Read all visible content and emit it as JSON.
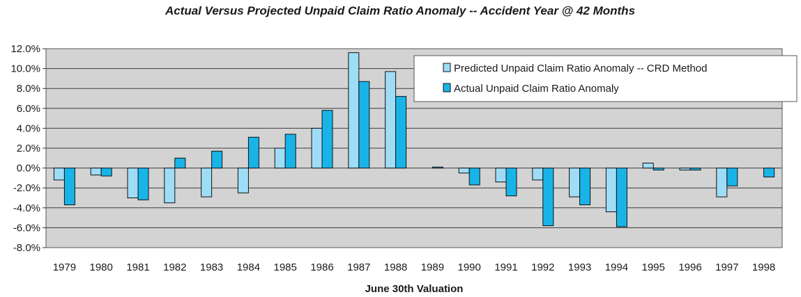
{
  "chart_data": {
    "type": "bar",
    "title": "Actual Versus Projected Unpaid Claim Ratio Anomaly -- Accident Year @ 42 Months",
    "xlabel": "June 30th Valuation",
    "ylabel": "",
    "ylim": [
      -0.08,
      0.12
    ],
    "yticks": [
      "12.0%",
      "10.0%",
      "8.0%",
      "6.0%",
      "4.0%",
      "2.0%",
      "0.0%",
      "-2.0%",
      "-4.0%",
      "-6.0%",
      "-8.0%"
    ],
    "categories": [
      "1979",
      "1980",
      "1981",
      "1982",
      "1983",
      "1984",
      "1985",
      "1986",
      "1987",
      "1988",
      "1989",
      "1990",
      "1991",
      "1992",
      "1993",
      "1994",
      "1995",
      "1996",
      "1997",
      "1998"
    ],
    "series": [
      {
        "name": "Predicted Unpaid Claim Ratio Anomaly -- CRD Method",
        "color": "#9fdcf6",
        "values": [
          -0.012,
          -0.007,
          -0.03,
          -0.035,
          -0.029,
          -0.025,
          0.02,
          0.04,
          0.116,
          0.097,
          0.0,
          -0.005,
          -0.014,
          -0.012,
          -0.029,
          -0.044,
          0.005,
          -0.002,
          -0.029,
          0.0
        ]
      },
      {
        "name": "Actual Unpaid Claim Ratio Anomaly",
        "color": "#18b4e8",
        "values": [
          -0.037,
          -0.008,
          -0.032,
          0.01,
          0.017,
          0.031,
          0.034,
          0.058,
          0.087,
          0.072,
          0.001,
          -0.017,
          -0.028,
          -0.058,
          -0.037,
          -0.059,
          -0.002,
          -0.002,
          -0.018,
          -0.009
        ]
      }
    ],
    "grid": true,
    "legend_position": "top-right",
    "plot_background": "#d3d3d3"
  }
}
